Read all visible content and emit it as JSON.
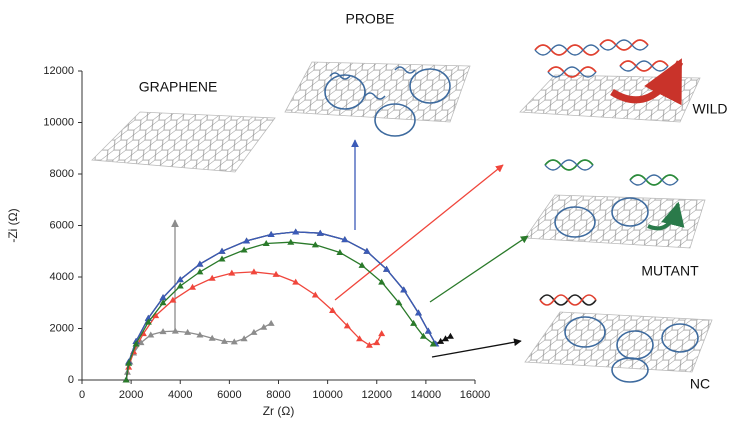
{
  "chart_data": {
    "type": "scatter",
    "xlabel": "Zr (Ω)",
    "ylabel": "-Zi (Ω)",
    "xlim": [
      0,
      16000
    ],
    "xticks": [
      0,
      2000,
      4000,
      6000,
      8000,
      10000,
      12000,
      14000,
      16000
    ],
    "ylim": [
      0,
      12000
    ],
    "yticks": [
      0,
      2000,
      4000,
      6000,
      8000,
      10000,
      12000
    ],
    "annotations": [
      "GRAPHENE",
      "PROBE",
      "WILD",
      "MUTANT",
      "NC"
    ],
    "series": [
      {
        "color": "#8c8c8c",
        "x": [
          1800,
          1850,
          1950,
          2100,
          2400,
          2800,
          3300,
          3800,
          4300,
          4800,
          5300,
          5800,
          6200,
          6600,
          7000,
          7400,
          7700
        ],
        "values": [
          0,
          300,
          700,
          1050,
          1450,
          1750,
          1880,
          1900,
          1850,
          1750,
          1620,
          1500,
          1480,
          1600,
          1850,
          2050,
          2200
        ]
      },
      {
        "color": "#f0463c",
        "x": [
          1800,
          1900,
          2100,
          2500,
          3000,
          3700,
          4500,
          5300,
          6100,
          7000,
          7900,
          8700,
          9500,
          10200,
          10800,
          11300,
          11700,
          12000,
          12200
        ],
        "values": [
          0,
          500,
          1100,
          1800,
          2500,
          3100,
          3600,
          3950,
          4150,
          4200,
          4100,
          3800,
          3300,
          2700,
          2100,
          1600,
          1350,
          1450,
          1800
        ]
      },
      {
        "color": "#111111",
        "x": [
          1800,
          1900,
          2200,
          2700,
          3300,
          4000,
          4800,
          5700,
          6700,
          7700,
          8700,
          9700,
          10700,
          11600,
          12400,
          13100,
          13700,
          14100,
          14400,
          14600,
          14800,
          15000
        ],
        "values": [
          0,
          700,
          1500,
          2400,
          3200,
          3900,
          4500,
          5000,
          5400,
          5650,
          5750,
          5700,
          5450,
          5000,
          4300,
          3500,
          2600,
          1900,
          1400,
          1500,
          1600,
          1700
        ]
      },
      {
        "color": "#3b5bb8",
        "x": [
          1800,
          1900,
          2200,
          2700,
          3300,
          4000,
          4800,
          5700,
          6700,
          7700,
          8700,
          9700,
          10700,
          11600,
          12400,
          13100,
          13700,
          14100,
          14400
        ],
        "values": [
          0,
          700,
          1500,
          2400,
          3200,
          3900,
          4500,
          5000,
          5400,
          5650,
          5750,
          5700,
          5450,
          5000,
          4300,
          3500,
          2600,
          1900,
          1400
        ]
      },
      {
        "color": "#2a7a2a",
        "x": [
          1800,
          1900,
          2200,
          2700,
          3300,
          4000,
          4800,
          5700,
          6600,
          7500,
          8500,
          9500,
          10500,
          11400,
          12200,
          12900,
          13500,
          13900,
          14300
        ],
        "values": [
          0,
          650,
          1400,
          2250,
          3000,
          3650,
          4200,
          4700,
          5050,
          5300,
          5350,
          5250,
          4950,
          4450,
          3800,
          3000,
          2200,
          1700,
          1400
        ]
      }
    ]
  }
}
